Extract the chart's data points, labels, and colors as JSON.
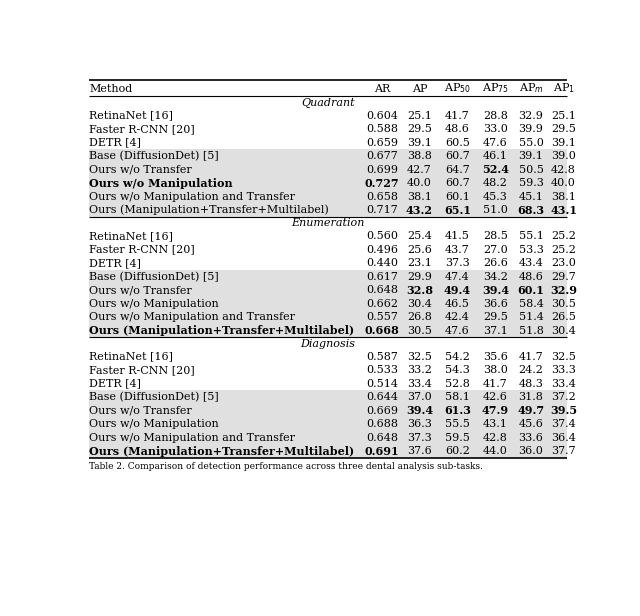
{
  "sections": [
    {
      "title": "Quadrant",
      "rows": [
        {
          "method": "RetinaNet [16]",
          "AR": "0.604",
          "AP": "25.1",
          "AP50": "41.7",
          "AP75": "28.8",
          "APm": "32.9",
          "AP1": "25.1",
          "bold": [],
          "shaded": false
        },
        {
          "method": "Faster R-CNN [20]",
          "AR": "0.588",
          "AP": "29.5",
          "AP50": "48.6",
          "AP75": "33.0",
          "APm": "39.9",
          "AP1": "29.5",
          "bold": [],
          "shaded": false
        },
        {
          "method": "DETR [4]",
          "AR": "0.659",
          "AP": "39.1",
          "AP50": "60.5",
          "AP75": "47.6",
          "APm": "55.0",
          "AP1": "39.1",
          "bold": [],
          "shaded": false
        },
        {
          "method": "Base (DiffusionDet) [5]",
          "AR": "0.677",
          "AP": "38.8",
          "AP50": "60.7",
          "AP75": "46.1",
          "APm": "39.1",
          "AP1": "39.0",
          "bold": [],
          "shaded": true
        },
        {
          "method": "Ours w/o Transfer",
          "AR": "0.699",
          "AP": "42.7",
          "AP50": "64.7",
          "AP75": "52.4",
          "APm": "50.5",
          "AP1": "42.8",
          "bold": [
            "AP75"
          ],
          "shaded": true
        },
        {
          "method": "Ours w/o Manipulation",
          "AR": "0.727",
          "AP": "40.0",
          "AP50": "60.7",
          "AP75": "48.2",
          "APm": "59.3",
          "AP1": "40.0",
          "bold": [
            "AR"
          ],
          "shaded": true
        },
        {
          "method": "Ours w/o Manipulation and Transfer",
          "AR": "0.658",
          "AP": "38.1",
          "AP50": "60.1",
          "AP75": "45.3",
          "APm": "45.1",
          "AP1": "38.1",
          "bold": [],
          "shaded": true
        },
        {
          "method": "Ours (Manipulation+Transfer+Multilabel)",
          "AR": "0.717",
          "AP": "43.2",
          "AP50": "65.1",
          "AP75": "51.0",
          "APm": "68.3",
          "AP1": "43.1",
          "bold": [
            "AP",
            "AP50",
            "APm",
            "AP1"
          ],
          "shaded": true
        }
      ]
    },
    {
      "title": "Enumeration",
      "rows": [
        {
          "method": "RetinaNet [16]",
          "AR": "0.560",
          "AP": "25.4",
          "AP50": "41.5",
          "AP75": "28.5",
          "APm": "55.1",
          "AP1": "25.2",
          "bold": [],
          "shaded": false
        },
        {
          "method": "Faster R-CNN [20]",
          "AR": "0.496",
          "AP": "25.6",
          "AP50": "43.7",
          "AP75": "27.0",
          "APm": "53.3",
          "AP1": "25.2",
          "bold": [],
          "shaded": false
        },
        {
          "method": "DETR [4]",
          "AR": "0.440",
          "AP": "23.1",
          "AP50": "37.3",
          "AP75": "26.6",
          "APm": "43.4",
          "AP1": "23.0",
          "bold": [],
          "shaded": false
        },
        {
          "method": "Base (DiffusionDet) [5]",
          "AR": "0.617",
          "AP": "29.9",
          "AP50": "47.4",
          "AP75": "34.2",
          "APm": "48.6",
          "AP1": "29.7",
          "bold": [],
          "shaded": true
        },
        {
          "method": "Ours w/o Transfer",
          "AR": "0.648",
          "AP": "32.8",
          "AP50": "49.4",
          "AP75": "39.4",
          "APm": "60.1",
          "AP1": "32.9",
          "bold": [
            "AP",
            "AP50",
            "AP75",
            "APm",
            "AP1"
          ],
          "shaded": true
        },
        {
          "method": "Ours w/o Manipulation",
          "AR": "0.662",
          "AP": "30.4",
          "AP50": "46.5",
          "AP75": "36.6",
          "APm": "58.4",
          "AP1": "30.5",
          "bold": [],
          "shaded": true
        },
        {
          "method": "Ours w/o Manipulation and Transfer",
          "AR": "0.557",
          "AP": "26.8",
          "AP50": "42.4",
          "AP75": "29.5",
          "APm": "51.4",
          "AP1": "26.5",
          "bold": [],
          "shaded": true
        },
        {
          "method": "Ours (Manipulation+Transfer+Multilabel)",
          "AR": "0.668",
          "AP": "30.5",
          "AP50": "47.6",
          "AP75": "37.1",
          "APm": "51.8",
          "AP1": "30.4",
          "bold": [
            "AR"
          ],
          "shaded": true
        }
      ]
    },
    {
      "title": "Diagnosis",
      "rows": [
        {
          "method": "RetinaNet [16]",
          "AR": "0.587",
          "AP": "32.5",
          "AP50": "54.2",
          "AP75": "35.6",
          "APm": "41.7",
          "AP1": "32.5",
          "bold": [],
          "shaded": false
        },
        {
          "method": "Faster R-CNN [20]",
          "AR": "0.533",
          "AP": "33.2",
          "AP50": "54.3",
          "AP75": "38.0",
          "APm": "24.2",
          "AP1": "33.3",
          "bold": [],
          "shaded": false
        },
        {
          "method": "DETR [4]",
          "AR": "0.514",
          "AP": "33.4",
          "AP50": "52.8",
          "AP75": "41.7",
          "APm": "48.3",
          "AP1": "33.4",
          "bold": [],
          "shaded": false
        },
        {
          "method": "Base (DiffusionDet) [5]",
          "AR": "0.644",
          "AP": "37.0",
          "AP50": "58.1",
          "AP75": "42.6",
          "APm": "31.8",
          "AP1": "37.2",
          "bold": [],
          "shaded": true
        },
        {
          "method": "Ours w/o Transfer",
          "AR": "0.669",
          "AP": "39.4",
          "AP50": "61.3",
          "AP75": "47.9",
          "APm": "49.7",
          "AP1": "39.5",
          "bold": [
            "AP",
            "AP50",
            "AP75",
            "APm",
            "AP1"
          ],
          "shaded": true
        },
        {
          "method": "Ours w/o Manipulation",
          "AR": "0.688",
          "AP": "36.3",
          "AP50": "55.5",
          "AP75": "43.1",
          "APm": "45.6",
          "AP1": "37.4",
          "bold": [],
          "shaded": true
        },
        {
          "method": "Ours w/o Manipulation and Transfer",
          "AR": "0.648",
          "AP": "37.3",
          "AP50": "59.5",
          "AP75": "42.8",
          "APm": "33.6",
          "AP1": "36.4",
          "bold": [],
          "shaded": true
        },
        {
          "method": "Ours (Manipulation+Transfer+Multilabel)",
          "AR": "0.691",
          "AP": "37.6",
          "AP50": "60.2",
          "AP75": "44.0",
          "APm": "36.0",
          "AP1": "37.7",
          "bold": [
            "AR"
          ],
          "shaded": true
        }
      ]
    }
  ],
  "col_keys": [
    "AR",
    "AP",
    "AP50",
    "AP75",
    "APm",
    "AP1"
  ],
  "col_headers": [
    "AR",
    "AP",
    "AP$_{50}$",
    "AP$_{75}$",
    "AP$_{m}$",
    "AP$_{1}$"
  ],
  "shaded_color": "#e0e0e0",
  "background_color": "#ffffff",
  "font_size": 8.0,
  "caption": "Table 2. Comparison of detection performance across three dental analysis sub-tasks."
}
